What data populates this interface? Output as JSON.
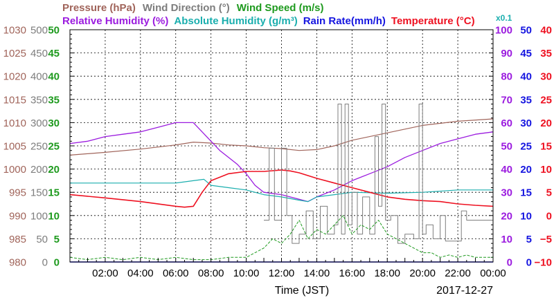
{
  "colors": {
    "pressure": "#a0645a",
    "wind_direction": "#7d7d7d",
    "wind_speed": "#1e9a1e",
    "relative_humidity": "#9b1bdf",
    "absolute_humidity": "#1aaeae",
    "rain_rate": "#1515e0",
    "temperature": "#ee1020",
    "grid": "#000000"
  },
  "chart_data": {
    "type": "line",
    "date": "2017-12-27",
    "x_label": "Time (JST)",
    "x_range": [
      0,
      24
    ],
    "x_ticks": [
      "02:00",
      "04:00",
      "06:00",
      "08:00",
      "10:00",
      "12:00",
      "14:00",
      "16:00",
      "18:00",
      "20:00",
      "22:00",
      "00:00"
    ],
    "grid": true,
    "legend": {
      "row1": [
        {
          "key": "pressure",
          "text": "Pressure (hPa)"
        },
        {
          "key": "wind_direction",
          "text": "Wind Direction (°)"
        },
        {
          "key": "wind_speed",
          "text": "Wind Speed (m/s)"
        }
      ],
      "row2": [
        {
          "key": "relative_humidity",
          "text": "Relative Humidity (%)"
        },
        {
          "key": "absolute_humidity",
          "text": "Absolute Humidity (g/m³)"
        },
        {
          "key": "rain_rate",
          "text": "Rain Rate(mm/h)"
        },
        {
          "key": "temperature",
          "text": "Temperature (°C)"
        }
      ],
      "abs_humidity_scale_note": "x0.1"
    },
    "axes": [
      {
        "key": "pressure",
        "side": "left",
        "range": [
          980,
          1030
        ],
        "ticks": [
          "980",
          "985",
          "990",
          "995",
          "1000",
          "1005",
          "1010",
          "1015",
          "1020",
          "1025",
          "1030"
        ]
      },
      {
        "key": "wind_direction",
        "side": "left",
        "range": [
          0,
          500
        ],
        "ticks": [
          "0",
          "50",
          "100",
          "150",
          "200",
          "250",
          "300",
          "350",
          "400",
          "450",
          "500"
        ]
      },
      {
        "key": "wind_speed",
        "side": "left",
        "range": [
          0,
          50
        ],
        "ticks": [
          "0",
          "5",
          "10",
          "15",
          "20",
          "25",
          "30",
          "35",
          "40",
          "45",
          "50"
        ]
      },
      {
        "key": "relative_humidity",
        "side": "right",
        "range": [
          0,
          100
        ],
        "ticks": [
          "0",
          "10",
          "20",
          "30",
          "40",
          "50",
          "60",
          "70",
          "80",
          "90",
          "100"
        ]
      },
      {
        "key": "rain_rate",
        "side": "right",
        "range": [
          0,
          50
        ],
        "ticks": [
          "0",
          "5",
          "10",
          "15",
          "20",
          "25",
          "30",
          "35",
          "40",
          "45",
          "50"
        ]
      },
      {
        "key": "temperature",
        "side": "right",
        "range": [
          -10,
          40
        ],
        "ticks": [
          "−10",
          "−5",
          "0",
          "5",
          "10",
          "15",
          "20",
          "25",
          "30",
          "35",
          "40"
        ]
      }
    ],
    "series": [
      {
        "key": "pressure",
        "name": "Pressure (hPa)",
        "axis": "pressure",
        "x": [
          0,
          2,
          4,
          6,
          7,
          8,
          9,
          10,
          11,
          12,
          13,
          14,
          15,
          16,
          18,
          20,
          22,
          24
        ],
        "y": [
          1003,
          1003.6,
          1004.3,
          1005.2,
          1005.8,
          1005.6,
          1005.2,
          1005,
          1004.6,
          1004.4,
          1004.0,
          1004.2,
          1005.0,
          1006.2,
          1007.8,
          1009.4,
          1010.3,
          1010.8
        ]
      },
      {
        "key": "relative_humidity",
        "name": "Relative Humidity (%)",
        "axis": "relative_humidity",
        "x": [
          0,
          1,
          2,
          3,
          4,
          5,
          6,
          6.5,
          7,
          7.5,
          8,
          8.5,
          9,
          9.5,
          10,
          10.5,
          11,
          12,
          13,
          13.5,
          14,
          15,
          16,
          17,
          18,
          19,
          20,
          21,
          22,
          23,
          24
        ],
        "y": [
          51,
          52,
          54,
          55,
          56,
          58,
          60,
          60,
          60,
          56,
          52,
          48,
          45,
          42,
          38,
          33,
          30,
          29,
          27,
          26,
          28,
          31,
          35,
          38,
          41,
          45,
          48,
          51,
          53,
          55,
          56
        ]
      },
      {
        "key": "absolute_humidity",
        "name": "Absolute Humidity (g/m³)",
        "axis": "rain_rate",
        "x": [
          0,
          2,
          4,
          6,
          7,
          7.6,
          8,
          9,
          10,
          11,
          12,
          13,
          13.5,
          14,
          15,
          16,
          18,
          20,
          22,
          24
        ],
        "y": [
          17,
          17,
          17,
          17,
          17.5,
          17.8,
          16.5,
          16,
          15.5,
          14.5,
          14.0,
          13.3,
          13.0,
          14,
          14.5,
          15,
          14.8,
          15,
          15.5,
          15.5
        ]
      },
      {
        "key": "temperature",
        "name": "Temperature (°C)",
        "axis": "temperature",
        "x": [
          0,
          2,
          4,
          6,
          6.5,
          7,
          7.5,
          8,
          9,
          10,
          11,
          12,
          12.5,
          13,
          14,
          15,
          16,
          17,
          18,
          19,
          20,
          21,
          22,
          23,
          24
        ],
        "y": [
          4.5,
          3.8,
          3.0,
          2.0,
          1.8,
          2.0,
          5.0,
          7.5,
          9.0,
          9.5,
          9.5,
          9.8,
          9.6,
          9.2,
          8.0,
          7.0,
          6.0,
          5.0,
          4.0,
          3.5,
          3.2,
          3.0,
          2.5,
          2.2,
          2.0
        ]
      },
      {
        "key": "wind_direction",
        "name": "Wind Direction (°)",
        "axis": "wind_direction",
        "x": [
          0,
          11.0,
          11.3,
          11.6,
          12.0,
          12.3,
          12.6,
          13.0,
          13.4,
          13.8,
          14.2,
          14.6,
          15.0,
          15.2,
          15.4,
          15.6,
          15.8,
          16.0,
          16.3,
          16.6,
          17.0,
          17.3,
          17.5,
          17.7,
          17.9,
          18.2,
          18.6,
          19.0,
          19.5,
          19.8,
          20.0,
          20.2,
          20.6,
          21.0,
          21.3,
          21.6,
          22.0,
          22.2,
          22.5,
          23.0,
          24.0
        ],
        "y": [
          null,
          90,
          245,
          90,
          245,
          100,
          40,
          60,
          110,
          50,
          120,
          60,
          80,
          340,
          60,
          340,
          80,
          150,
          60,
          140,
          60,
          270,
          120,
          340,
          90,
          100,
          40,
          60,
          50,
          340,
          60,
          80,
          50,
          100,
          45,
          45,
          45,
          110,
          90,
          90,
          90
        ]
      },
      {
        "key": "wind_speed",
        "name": "Wind Speed (m/s)",
        "axis": "wind_speed",
        "x": [
          0,
          1,
          2,
          3,
          4,
          5,
          6,
          7,
          8,
          9,
          10,
          10.5,
          11,
          11.5,
          12,
          12.5,
          13,
          13.5,
          14,
          14.5,
          15,
          15.5,
          16,
          16.5,
          17,
          17.5,
          18,
          18.5,
          19,
          19.5,
          20,
          20.5,
          21,
          21.5,
          22,
          22.5,
          23,
          24
        ],
        "y": [
          1,
          0.5,
          1,
          0.5,
          1,
          0.5,
          1,
          0.5,
          0.5,
          1,
          1,
          2,
          3,
          5,
          4,
          6,
          9,
          5,
          7,
          6,
          8,
          10,
          6,
          8,
          7,
          9,
          6,
          5,
          4,
          3,
          2,
          2,
          1,
          1.5,
          1,
          1.5,
          1,
          1
        ]
      },
      {
        "key": "rain_rate",
        "name": "Rain Rate(mm/h)",
        "axis": "rain_rate",
        "x": [
          0,
          24
        ],
        "y": [
          0,
          0
        ]
      }
    ]
  }
}
